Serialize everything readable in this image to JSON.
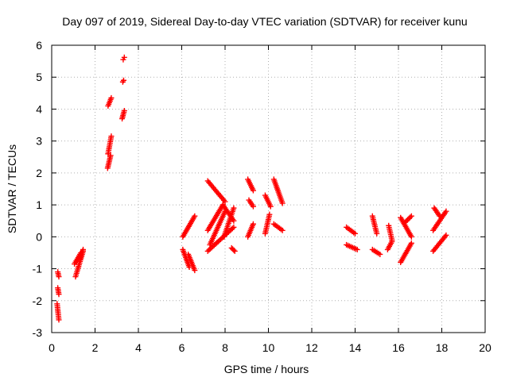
{
  "chart_data": {
    "type": "scatter",
    "title": "Day 097 of 2019, Sidereal Day-to-day VTEC variation (SDTVAR) for receiver kunu",
    "xlabel": "GPS time / hours",
    "ylabel": "SDTVAR / TECUs",
    "xlim": [
      0,
      20
    ],
    "ylim": [
      -3,
      6
    ],
    "xticks": [
      0,
      2,
      4,
      6,
      8,
      10,
      12,
      14,
      16,
      18,
      20
    ],
    "yticks": [
      -3,
      -2,
      -1,
      0,
      1,
      2,
      3,
      4,
      5,
      6
    ],
    "grid": true,
    "marker": "+",
    "marker_color": "#ff0000",
    "segments": [
      {
        "x0": 0.28,
        "x1": 0.33,
        "y0": -1.1,
        "y1": -1.25
      },
      {
        "x0": 0.28,
        "x1": 0.33,
        "y0": -1.6,
        "y1": -1.8
      },
      {
        "x0": 0.25,
        "x1": 0.33,
        "y0": -2.1,
        "y1": -2.6
      },
      {
        "x0": 1.1,
        "x1": 1.45,
        "y0": -1.25,
        "y1": -0.45
      },
      {
        "x0": 1.05,
        "x1": 1.35,
        "y0": -0.85,
        "y1": -0.5
      },
      {
        "x0": 1.3,
        "x1": 1.45,
        "y0": -0.7,
        "y1": -0.4
      },
      {
        "x0": 2.6,
        "x1": 2.75,
        "y0": 4.1,
        "y1": 4.35
      },
      {
        "x0": 2.6,
        "x1": 2.75,
        "y0": 2.6,
        "y1": 3.15
      },
      {
        "x0": 2.58,
        "x1": 2.72,
        "y0": 2.15,
        "y1": 2.55
      },
      {
        "x0": 3.3,
        "x1": 3.35,
        "y0": 5.55,
        "y1": 5.62
      },
      {
        "x0": 3.28,
        "x1": 3.32,
        "y0": 4.85,
        "y1": 4.9
      },
      {
        "x0": 3.25,
        "x1": 3.35,
        "y0": 3.7,
        "y1": 3.95
      },
      {
        "x0": 6.05,
        "x1": 6.6,
        "y0": 0.0,
        "y1": 0.65
      },
      {
        "x0": 6.05,
        "x1": 6.35,
        "y0": -0.4,
        "y1": -0.95
      },
      {
        "x0": 6.3,
        "x1": 6.6,
        "y0": -0.55,
        "y1": -1.05
      },
      {
        "x0": 7.2,
        "x1": 8.0,
        "y0": 1.75,
        "y1": 1.1
      },
      {
        "x0": 7.9,
        "x1": 8.4,
        "y0": 1.0,
        "y1": 0.5
      },
      {
        "x0": 7.2,
        "x1": 7.9,
        "y0": 0.2,
        "y1": 1.0
      },
      {
        "x0": 7.3,
        "x1": 8.0,
        "y0": -0.25,
        "y1": 0.8
      },
      {
        "x0": 7.2,
        "x1": 8.4,
        "y0": -0.45,
        "y1": 0.3
      },
      {
        "x0": 7.95,
        "x1": 8.4,
        "y0": 0.0,
        "y1": 0.9
      },
      {
        "x0": 8.3,
        "x1": 8.45,
        "y0": -0.35,
        "y1": -0.45
      },
      {
        "x0": 9.05,
        "x1": 9.3,
        "y0": 1.8,
        "y1": 1.45
      },
      {
        "x0": 9.1,
        "x1": 9.3,
        "y0": 1.15,
        "y1": 0.95
      },
      {
        "x0": 9.05,
        "x1": 9.3,
        "y0": 0.0,
        "y1": 0.4
      },
      {
        "x0": 9.85,
        "x1": 10.1,
        "y0": 1.3,
        "y1": 0.95
      },
      {
        "x0": 9.85,
        "x1": 10.05,
        "y0": 0.1,
        "y1": 0.7
      },
      {
        "x0": 10.25,
        "x1": 10.65,
        "y0": 1.8,
        "y1": 1.05
      },
      {
        "x0": 10.25,
        "x1": 10.65,
        "y0": 0.4,
        "y1": 0.2
      },
      {
        "x0": 13.6,
        "x1": 14.0,
        "y0": 0.3,
        "y1": 0.1
      },
      {
        "x0": 13.6,
        "x1": 14.1,
        "y0": -0.25,
        "y1": -0.4
      },
      {
        "x0": 14.8,
        "x1": 15.0,
        "y0": 0.65,
        "y1": 0.1
      },
      {
        "x0": 14.8,
        "x1": 15.15,
        "y0": -0.4,
        "y1": -0.55
      },
      {
        "x0": 15.55,
        "x1": 15.7,
        "y0": 0.35,
        "y1": -0.1
      },
      {
        "x0": 15.5,
        "x1": 15.7,
        "y0": -0.4,
        "y1": -0.15
      },
      {
        "x0": 16.1,
        "x1": 16.6,
        "y0": 0.6,
        "y1": 0.0
      },
      {
        "x0": 16.1,
        "x1": 16.6,
        "y0": -0.8,
        "y1": -0.2
      },
      {
        "x0": 16.3,
        "x1": 16.6,
        "y0": 0.45,
        "y1": 0.65
      },
      {
        "x0": 17.65,
        "x1": 17.9,
        "y0": 0.9,
        "y1": 0.65
      },
      {
        "x0": 17.6,
        "x1": 18.2,
        "y0": 0.2,
        "y1": 0.8
      },
      {
        "x0": 17.6,
        "x1": 18.2,
        "y0": -0.45,
        "y1": 0.05
      }
    ]
  }
}
